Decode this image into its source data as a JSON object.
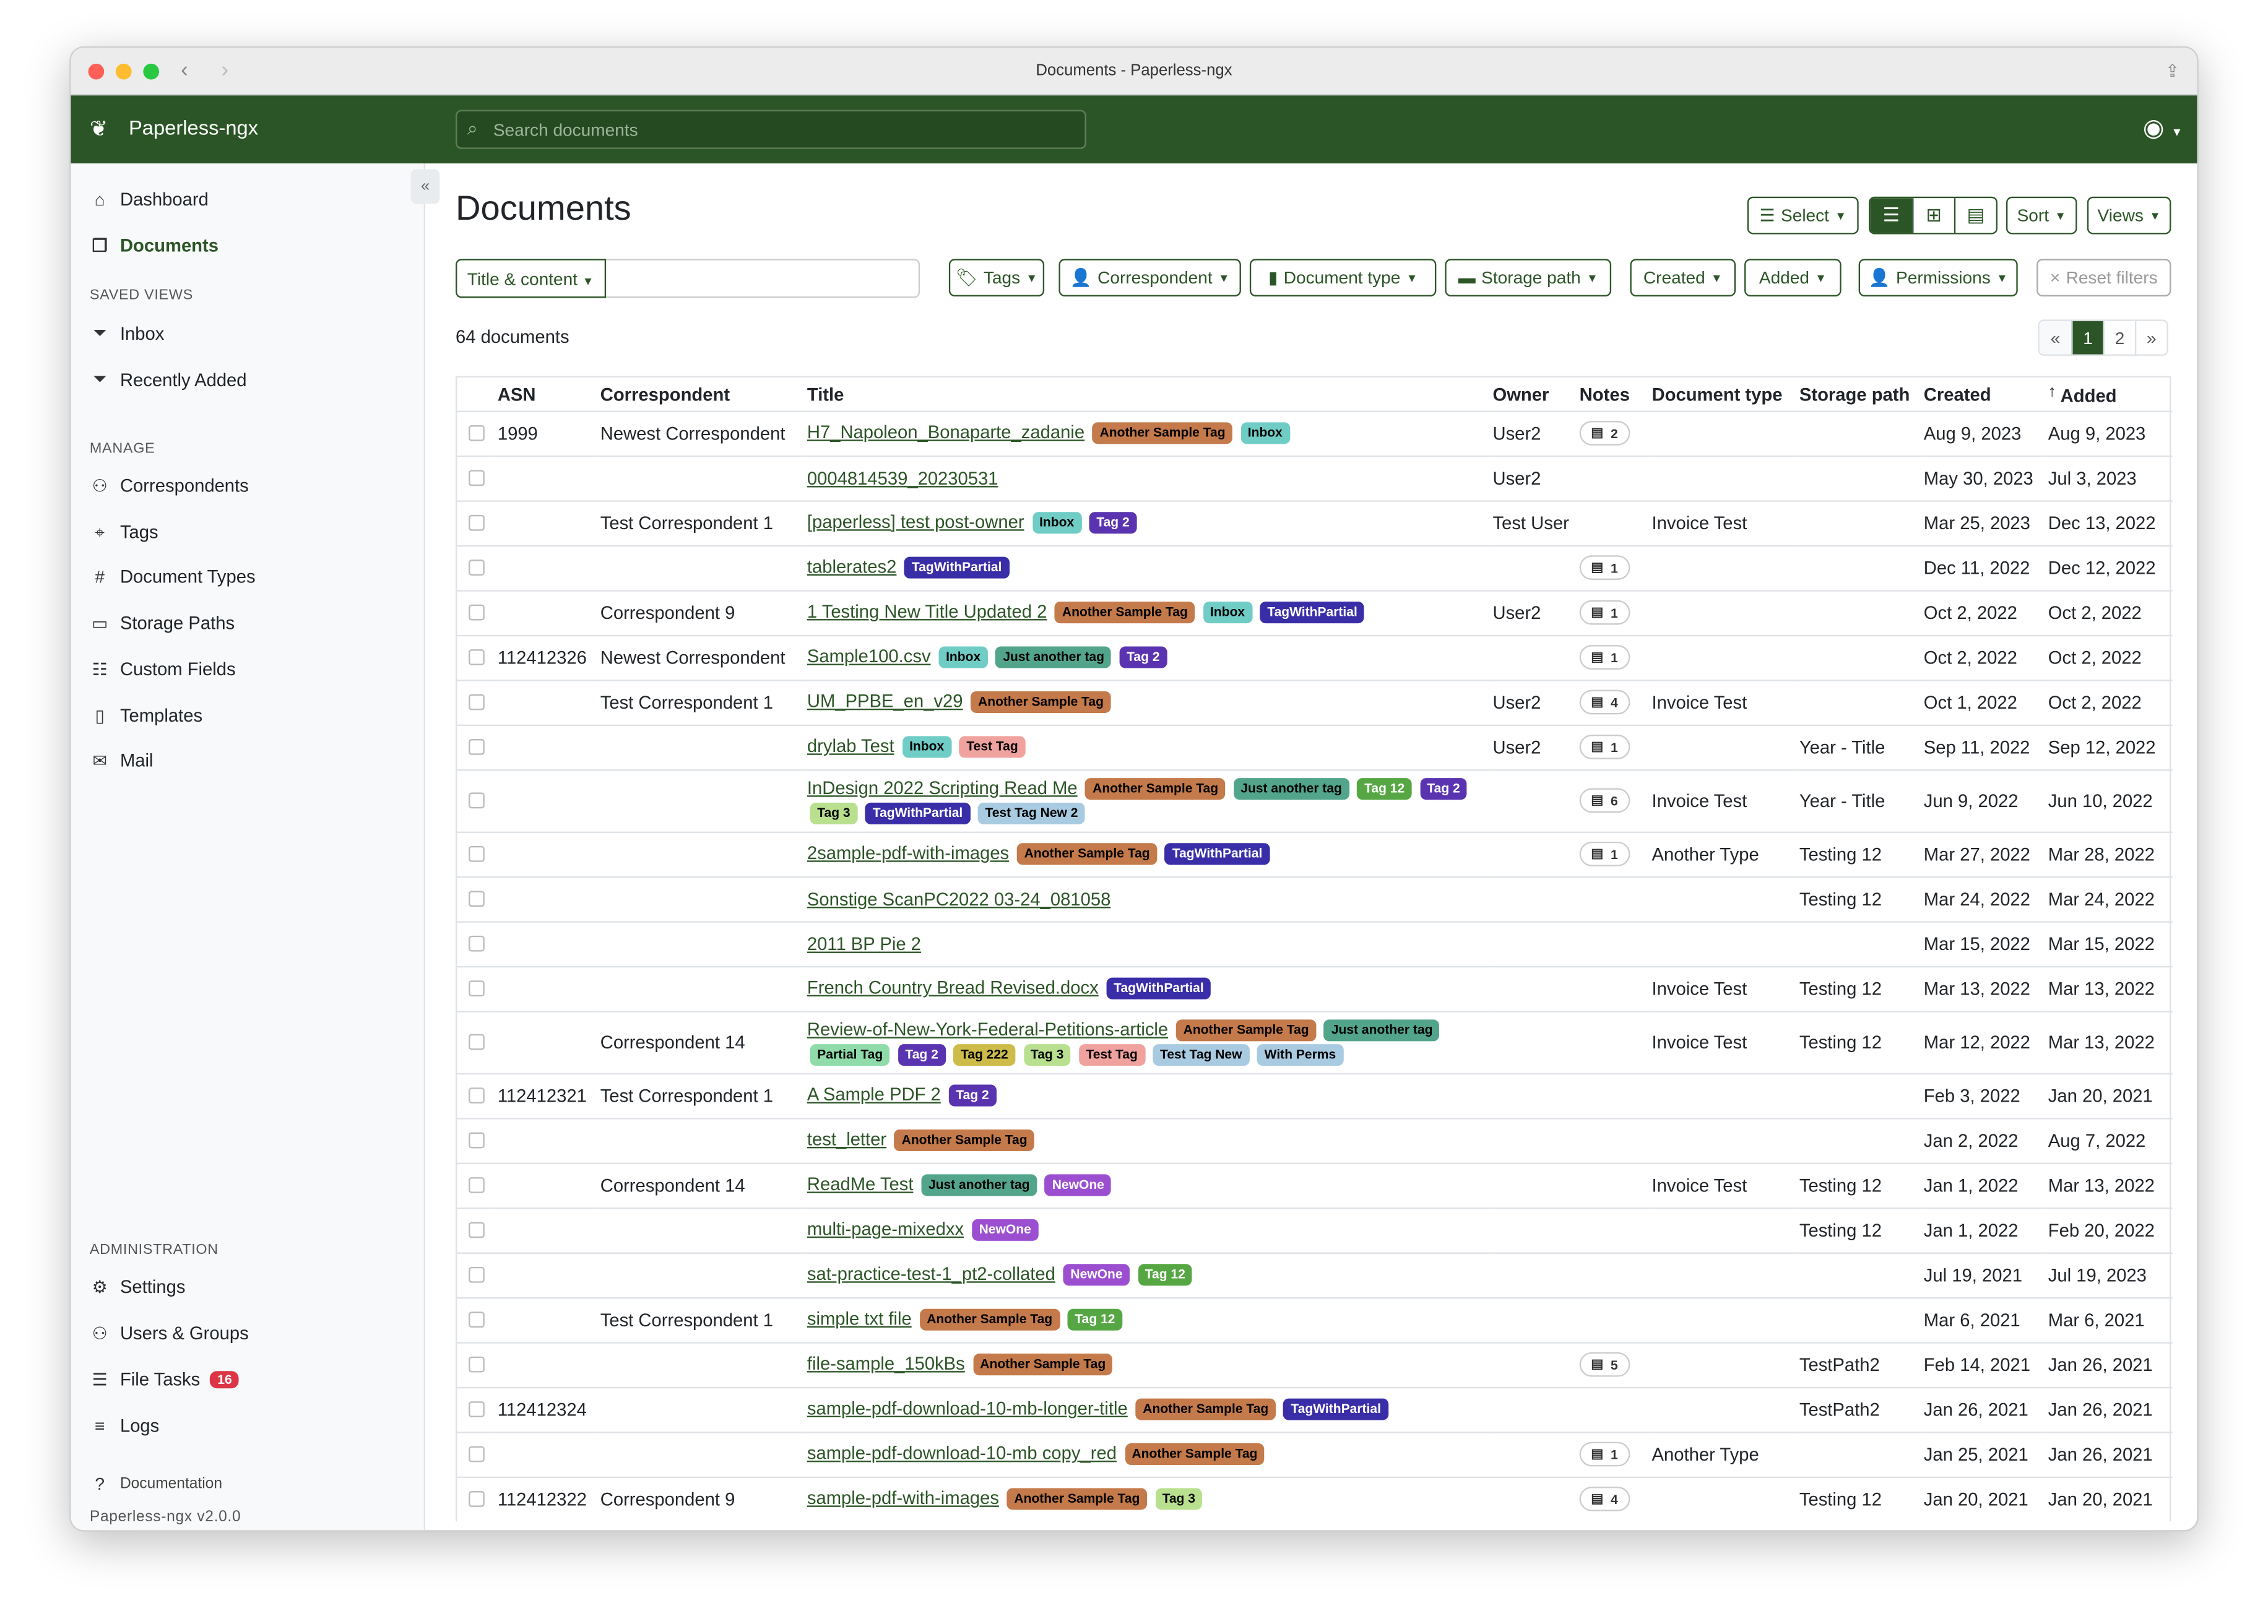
{
  "window": {
    "title": "Documents - Paperless-ngx"
  },
  "header": {
    "brand": "Paperless-ngx",
    "search_placeholder": "Search documents"
  },
  "sidebar": {
    "top": [
      {
        "label": "Dashboard",
        "icon": "house-icon"
      },
      {
        "label": "Documents",
        "icon": "files-icon",
        "active": true
      }
    ],
    "saved_views_heading": "SAVED VIEWS",
    "saved_views": [
      {
        "label": "Inbox",
        "icon": "funnel-icon"
      },
      {
        "label": "Recently Added",
        "icon": "funnel-icon"
      }
    ],
    "manage_heading": "MANAGE",
    "manage": [
      {
        "label": "Correspondents",
        "icon": "person-icon"
      },
      {
        "label": "Tags",
        "icon": "tags-icon"
      },
      {
        "label": "Document Types",
        "icon": "hash-icon"
      },
      {
        "label": "Storage Paths",
        "icon": "folder-icon"
      },
      {
        "label": "Custom Fields",
        "icon": "ui-radios-icon"
      },
      {
        "label": "Templates",
        "icon": "file-text-icon"
      },
      {
        "label": "Mail",
        "icon": "envelope-icon"
      }
    ],
    "admin_heading": "ADMINISTRATION",
    "admin": [
      {
        "label": "Settings",
        "icon": "gear-icon"
      },
      {
        "label": "Users & Groups",
        "icon": "people-icon"
      },
      {
        "label": "File Tasks",
        "icon": "list-icon",
        "badge": "16"
      },
      {
        "label": "Logs",
        "icon": "text-lines-icon"
      }
    ],
    "documentation": "Documentation",
    "version": "Paperless-ngx v2.0.0"
  },
  "main": {
    "title": "Documents",
    "toolbar": {
      "select": "Select",
      "sort": "Sort",
      "views": "Views"
    },
    "filters": {
      "title_content": "Title & content",
      "tags": "Tags",
      "correspondent": "Correspondent",
      "document_type": "Document type",
      "storage_path": "Storage path",
      "created": "Created",
      "added": "Added",
      "permissions": "Permissions",
      "reset": "Reset filters"
    },
    "count": "64 documents",
    "pager": [
      "«",
      "1",
      "2",
      "»"
    ],
    "columns": [
      "ASN",
      "Correspondent",
      "Title",
      "Owner",
      "Notes",
      "Document type",
      "Storage path",
      "Created",
      "Added"
    ]
  },
  "tag_colors": {
    "Another Sample Tag": [
      "#c47a4a",
      "#000"
    ],
    "Inbox": [
      "#6fcdc6",
      "#000"
    ],
    "Tag 2": [
      "#5a34b0",
      "#fff"
    ],
    "TagWithPartial": [
      "#3a2ea8",
      "#fff"
    ],
    "Just another tag": [
      "#52a58b",
      "#000"
    ],
    "Test Tag": [
      "#f0a39e",
      "#000"
    ],
    "Tag 12": [
      "#56a744",
      "#fff"
    ],
    "Tag 3": [
      "#b9e08f",
      "#000"
    ],
    "Test Tag New 2": [
      "#a9cbe2",
      "#000"
    ],
    "Partial Tag": [
      "#8fdcaa",
      "#000"
    ],
    "Tag 222": [
      "#cdbc4a",
      "#000"
    ],
    "Test Tag New": [
      "#a9cbe2",
      "#000"
    ],
    "With Perms": [
      "#a9cbe2",
      "#000"
    ],
    "NewOne": [
      "#9b4fd0",
      "#fff"
    ]
  },
  "rows": [
    {
      "asn": "1999",
      "corr": "Newest Correspondent",
      "title": "H7_Napoleon_Bonaparte_zadanie",
      "tags": [
        "Another Sample Tag",
        "Inbox"
      ],
      "owner": "User2",
      "notes": "2",
      "type": "",
      "path": "",
      "created": "Aug 9, 2023",
      "added": "Aug 9, 2023"
    },
    {
      "asn": "",
      "corr": "",
      "title": "0004814539_20230531",
      "tags": [],
      "owner": "User2",
      "notes": "",
      "type": "",
      "path": "",
      "created": "May 30, 2023",
      "added": "Jul 3, 2023"
    },
    {
      "asn": "",
      "corr": "Test Correspondent 1",
      "title": "[paperless] test post-owner",
      "tags": [
        "Inbox",
        "Tag 2"
      ],
      "owner": "Test User",
      "notes": "",
      "type": "Invoice Test",
      "path": "",
      "created": "Mar 25, 2023",
      "added": "Dec 13, 2022"
    },
    {
      "asn": "",
      "corr": "",
      "title": "tablerates2",
      "tags": [
        "TagWithPartial"
      ],
      "owner": "",
      "notes": "1",
      "type": "",
      "path": "",
      "created": "Dec 11, 2022",
      "added": "Dec 12, 2022"
    },
    {
      "asn": "",
      "corr": "Correspondent 9",
      "title": "1 Testing New Title Updated 2",
      "tags": [
        "Another Sample Tag",
        "Inbox",
        "TagWithPartial"
      ],
      "owner": "User2",
      "notes": "1",
      "type": "",
      "path": "",
      "created": "Oct 2, 2022",
      "added": "Oct 2, 2022"
    },
    {
      "asn": "112412326",
      "corr": "Newest Correspondent",
      "title": "Sample100.csv",
      "tags": [
        "Inbox",
        "Just another tag",
        "Tag 2"
      ],
      "owner": "",
      "notes": "1",
      "type": "",
      "path": "",
      "created": "Oct 2, 2022",
      "added": "Oct 2, 2022"
    },
    {
      "asn": "",
      "corr": "Test Correspondent 1",
      "title": "UM_PPBE_en_v29",
      "tags": [
        "Another Sample Tag"
      ],
      "owner": "User2",
      "notes": "4",
      "type": "Invoice Test",
      "path": "",
      "created": "Oct 1, 2022",
      "added": "Oct 2, 2022"
    },
    {
      "asn": "",
      "corr": "",
      "title": "drylab Test",
      "tags": [
        "Inbox",
        "Test Tag"
      ],
      "owner": "User2",
      "notes": "1",
      "type": "",
      "path": "Year - Title",
      "created": "Sep 11, 2022",
      "added": "Sep 12, 2022"
    },
    {
      "asn": "",
      "corr": "",
      "title": "InDesign 2022 Scripting Read Me",
      "tags": [
        "Another Sample Tag",
        "Just another tag",
        "Tag 12",
        "Tag 2",
        "Tag 3",
        "TagWithPartial",
        "Test Tag New 2"
      ],
      "owner": "",
      "notes": "6",
      "type": "Invoice Test",
      "path": "Year - Title",
      "created": "Jun 9, 2022",
      "added": "Jun 10, 2022"
    },
    {
      "asn": "",
      "corr": "",
      "title": "2sample-pdf-with-images",
      "tags": [
        "Another Sample Tag",
        "TagWithPartial"
      ],
      "owner": "",
      "notes": "1",
      "type": "Another Type",
      "path": "Testing 12",
      "created": "Mar 27, 2022",
      "added": "Mar 28, 2022"
    },
    {
      "asn": "",
      "corr": "",
      "title": "Sonstige ScanPC2022 03-24_081058",
      "tags": [],
      "owner": "",
      "notes": "",
      "type": "",
      "path": "Testing 12",
      "created": "Mar 24, 2022",
      "added": "Mar 24, 2022"
    },
    {
      "asn": "",
      "corr": "",
      "title": "2011 BP Pie 2",
      "tags": [],
      "owner": "",
      "notes": "",
      "type": "",
      "path": "",
      "created": "Mar 15, 2022",
      "added": "Mar 15, 2022"
    },
    {
      "asn": "",
      "corr": "",
      "title": "French Country Bread Revised.docx",
      "tags": [
        "TagWithPartial"
      ],
      "owner": "",
      "notes": "",
      "type": "Invoice Test",
      "path": "Testing 12",
      "created": "Mar 13, 2022",
      "added": "Mar 13, 2022"
    },
    {
      "asn": "",
      "corr": "Correspondent 14",
      "title": "Review-of-New-York-Federal-Petitions-article",
      "tags": [
        "Another Sample Tag",
        "Just another tag",
        "Partial Tag",
        "Tag 2",
        "Tag 222",
        "Tag 3",
        "Test Tag",
        "Test Tag New",
        "With Perms"
      ],
      "owner": "",
      "notes": "",
      "type": "Invoice Test",
      "path": "Testing 12",
      "created": "Mar 12, 2022",
      "added": "Mar 13, 2022"
    },
    {
      "asn": "112412321",
      "corr": "Test Correspondent 1",
      "title": "A Sample PDF 2",
      "tags": [
        "Tag 2"
      ],
      "owner": "",
      "notes": "",
      "type": "",
      "path": "",
      "created": "Feb 3, 2022",
      "added": "Jan 20, 2021"
    },
    {
      "asn": "",
      "corr": "",
      "title": "test_letter",
      "tags": [
        "Another Sample Tag"
      ],
      "owner": "",
      "notes": "",
      "type": "",
      "path": "",
      "created": "Jan 2, 2022",
      "added": "Aug 7, 2022"
    },
    {
      "asn": "",
      "corr": "Correspondent 14",
      "title": "ReadMe Test",
      "tags": [
        "Just another tag",
        "NewOne"
      ],
      "owner": "",
      "notes": "",
      "type": "Invoice Test",
      "path": "Testing 12",
      "created": "Jan 1, 2022",
      "added": "Mar 13, 2022"
    },
    {
      "asn": "",
      "corr": "",
      "title": "multi-page-mixedxx",
      "tags": [
        "NewOne"
      ],
      "owner": "",
      "notes": "",
      "type": "",
      "path": "Testing 12",
      "created": "Jan 1, 2022",
      "added": "Feb 20, 2022"
    },
    {
      "asn": "",
      "corr": "",
      "title": "sat-practice-test-1_pt2-collated",
      "tags": [
        "NewOne",
        "Tag 12"
      ],
      "owner": "",
      "notes": "",
      "type": "",
      "path": "",
      "created": "Jul 19, 2021",
      "added": "Jul 19, 2023"
    },
    {
      "asn": "",
      "corr": "Test Correspondent 1",
      "title": "simple txt file",
      "tags": [
        "Another Sample Tag",
        "Tag 12"
      ],
      "owner": "",
      "notes": "",
      "type": "",
      "path": "",
      "created": "Mar 6, 2021",
      "added": "Mar 6, 2021"
    },
    {
      "asn": "",
      "corr": "",
      "title": "file-sample_150kBs",
      "tags": [
        "Another Sample Tag"
      ],
      "owner": "",
      "notes": "5",
      "type": "",
      "path": "TestPath2",
      "created": "Feb 14, 2021",
      "added": "Jan 26, 2021"
    },
    {
      "asn": "112412324",
      "corr": "",
      "title": "sample-pdf-download-10-mb-longer-title",
      "tags": [
        "Another Sample Tag",
        "TagWithPartial"
      ],
      "owner": "",
      "notes": "",
      "type": "",
      "path": "TestPath2",
      "created": "Jan 26, 2021",
      "added": "Jan 26, 2021"
    },
    {
      "asn": "",
      "corr": "",
      "title": "sample-pdf-download-10-mb copy_red",
      "tags": [
        "Another Sample Tag"
      ],
      "owner": "",
      "notes": "1",
      "type": "Another Type",
      "path": "",
      "created": "Jan 25, 2021",
      "added": "Jan 26, 2021"
    },
    {
      "asn": "112412322",
      "corr": "Correspondent 9",
      "title": "sample-pdf-with-images",
      "tags": [
        "Another Sample Tag",
        "Tag 3"
      ],
      "owner": "",
      "notes": "4",
      "type": "",
      "path": "Testing 12",
      "created": "Jan 20, 2021",
      "added": "Jan 20, 2021"
    }
  ]
}
